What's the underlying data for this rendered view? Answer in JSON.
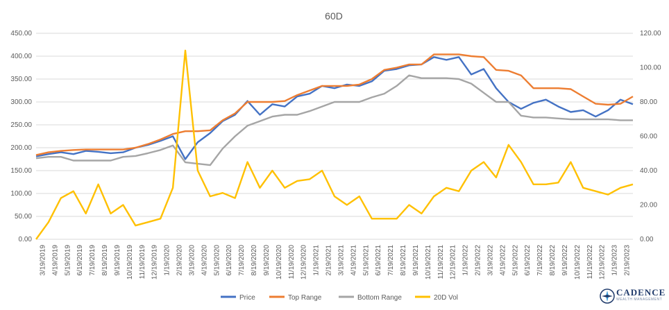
{
  "chart_data": {
    "type": "line",
    "title": "60D",
    "xlabel": "",
    "ylabel": "",
    "ylim_left": [
      0,
      450
    ],
    "ylim_right": [
      0,
      120
    ],
    "yticks_left": [
      "0.00",
      "50.00",
      "100.00",
      "150.00",
      "200.00",
      "250.00",
      "300.00",
      "350.00",
      "400.00",
      "450.00"
    ],
    "yticks_right": [
      "0.00",
      "20.00",
      "40.00",
      "60.00",
      "80.00",
      "100.00",
      "120.00"
    ],
    "xticks": [
      "3/19/2019",
      "4/19/2019",
      "5/19/2019",
      "6/19/2019",
      "7/19/2019",
      "8/19/2019",
      "9/19/2019",
      "10/19/2019",
      "11/19/2019",
      "12/19/2019",
      "1/19/2020",
      "2/19/2020",
      "3/19/2020",
      "4/19/2020",
      "5/19/2020",
      "6/19/2020",
      "7/19/2020",
      "8/19/2020",
      "9/19/2020",
      "10/19/2020",
      "11/19/2020",
      "12/19/2020",
      "1/19/2021",
      "2/19/2021",
      "3/19/2021",
      "4/19/2021",
      "5/19/2021",
      "6/19/2021",
      "7/19/2021",
      "8/19/2021",
      "9/19/2021",
      "10/19/2021",
      "11/19/2021",
      "12/19/2021",
      "1/19/2022",
      "2/19/2022",
      "3/19/2022",
      "4/19/2022",
      "5/19/2022",
      "6/19/2022",
      "7/19/2022",
      "8/19/2022",
      "9/19/2022",
      "10/19/2022",
      "11/19/2022",
      "12/19/2022",
      "1/19/2023",
      "2/19/2023"
    ],
    "legend_position": "bottom",
    "grid": "horizontal",
    "x": [
      "2019-03",
      "2019-04",
      "2019-05",
      "2019-06",
      "2019-07",
      "2019-08",
      "2019-09",
      "2019-10",
      "2019-11",
      "2019-12",
      "2020-01",
      "2020-02",
      "2020-03",
      "2020-04",
      "2020-05",
      "2020-06",
      "2020-07",
      "2020-08",
      "2020-09",
      "2020-10",
      "2020-11",
      "2020-12",
      "2021-01",
      "2021-02",
      "2021-03",
      "2021-04",
      "2021-05",
      "2021-06",
      "2021-07",
      "2021-08",
      "2021-09",
      "2021-10",
      "2021-11",
      "2021-12",
      "2022-01",
      "2022-02",
      "2022-03",
      "2022-04",
      "2022-05",
      "2022-06",
      "2022-07",
      "2022-08",
      "2022-09",
      "2022-10",
      "2022-11",
      "2022-12",
      "2023-01",
      "2023-02",
      "2023-03"
    ],
    "series": [
      {
        "name": "Price",
        "color": "#4472c4",
        "axis": "left",
        "width": 2.4,
        "values": [
          181,
          186,
          190,
          186,
          193,
          191,
          188,
          190,
          200,
          206,
          215,
          225,
          175,
          212,
          232,
          258,
          272,
          302,
          272,
          295,
          290,
          312,
          318,
          335,
          330,
          338,
          335,
          345,
          368,
          372,
          380,
          382,
          398,
          392,
          398,
          360,
          372,
          330,
          300,
          285,
          298,
          305,
          290,
          278,
          282,
          268,
          282,
          305,
          295
        ]
      },
      {
        "name": "Top Range",
        "color": "#ed7d31",
        "axis": "left",
        "width": 2.4,
        "values": [
          184,
          190,
          193,
          195,
          196,
          196,
          196,
          196,
          200,
          208,
          218,
          230,
          236,
          236,
          238,
          260,
          275,
          300,
          300,
          300,
          302,
          315,
          325,
          335,
          335,
          335,
          338,
          350,
          370,
          375,
          382,
          382,
          404,
          404,
          404,
          400,
          398,
          370,
          368,
          358,
          330,
          330,
          330,
          328,
          312,
          296,
          294,
          296,
          312
        ]
      },
      {
        "name": "Bottom Range",
        "color": "#a5a5a5",
        "axis": "left",
        "width": 2.4,
        "values": [
          177,
          180,
          180,
          172,
          172,
          172,
          172,
          180,
          182,
          188,
          195,
          205,
          168,
          165,
          162,
          198,
          225,
          248,
          258,
          268,
          272,
          272,
          280,
          290,
          300,
          300,
          300,
          310,
          318,
          335,
          358,
          352,
          352,
          352,
          350,
          340,
          320,
          300,
          300,
          270,
          266,
          266,
          264,
          262,
          262,
          262,
          262,
          260,
          260
        ]
      },
      {
        "name": "20D Vol",
        "color": "#ffc000",
        "axis": "right",
        "width": 2.4,
        "values": [
          0,
          10,
          24,
          28,
          15,
          32,
          15,
          20,
          8,
          10,
          12,
          30,
          110,
          40,
          25,
          27,
          24,
          45,
          30,
          40,
          30,
          34,
          35,
          40,
          25,
          20,
          25,
          12,
          12,
          12,
          20,
          15,
          25,
          30,
          28,
          40,
          45,
          36,
          55,
          45,
          32,
          32,
          33,
          45,
          30,
          28,
          26,
          30,
          32
        ]
      }
    ]
  },
  "logo": {
    "name": "CADENCE",
    "subtitle": "WEALTH MANAGEMENT"
  }
}
